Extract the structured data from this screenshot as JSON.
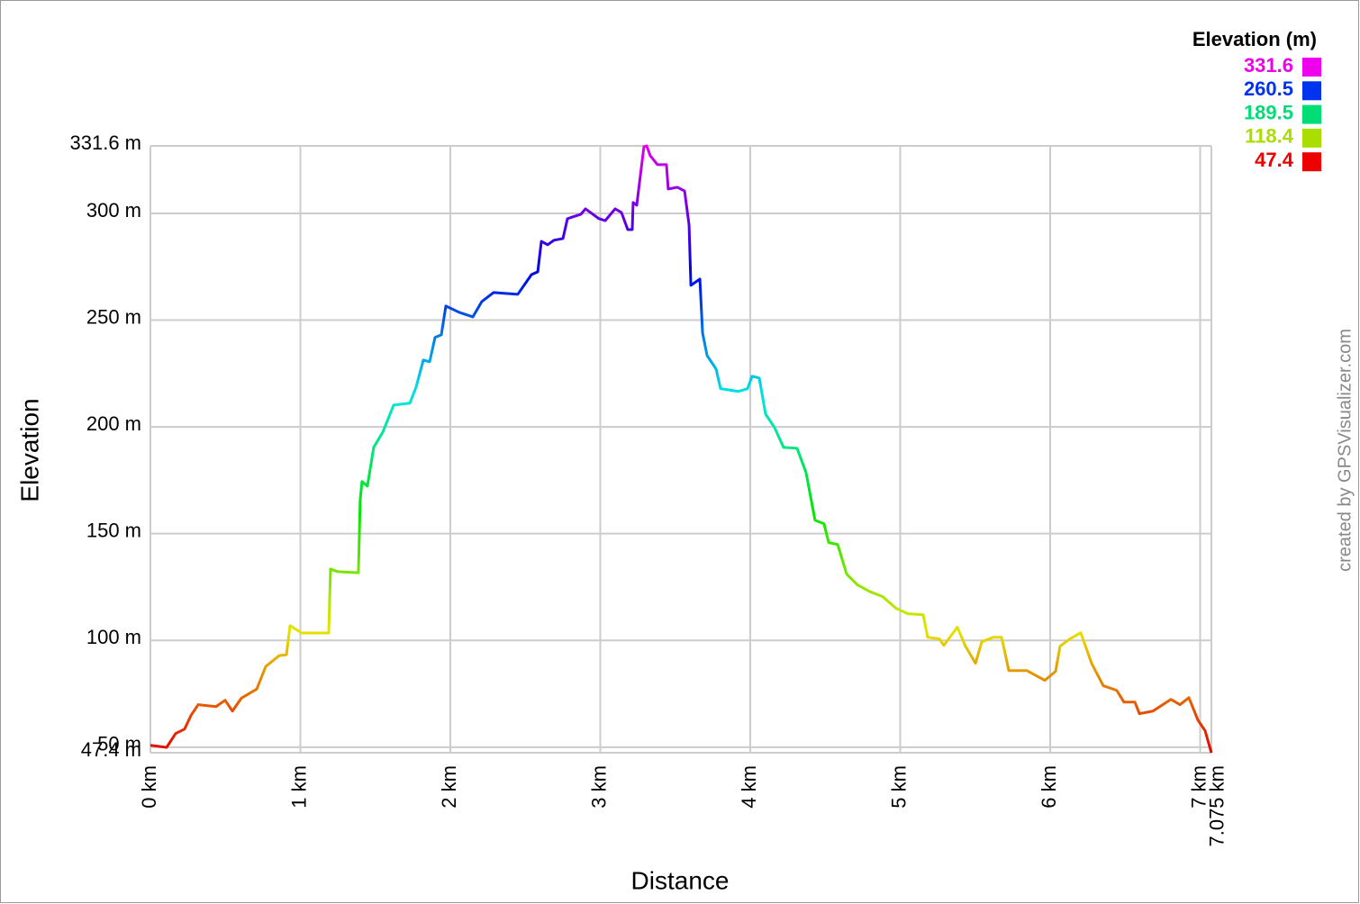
{
  "chart_data": {
    "type": "line",
    "x_label": "Distance",
    "y_label": "Elevation",
    "credit": "created by GPSVisualizer.com",
    "color_scale": {
      "title": "Elevation (m)",
      "stops": [
        {
          "value": 331.6,
          "color": "#ee00ee"
        },
        {
          "value": 260.5,
          "color": "#0033ee"
        },
        {
          "value": 189.5,
          "color": "#00dd77"
        },
        {
          "value": 118.4,
          "color": "#aadd00"
        },
        {
          "value": 47.4,
          "color": "#ee0000"
        }
      ]
    },
    "xlim": [
      0,
      7.075
    ],
    "xticks": [
      {
        "value": 0,
        "label": "0 km"
      },
      {
        "value": 1,
        "label": "1 km"
      },
      {
        "value": 2,
        "label": "2 km"
      },
      {
        "value": 3,
        "label": "3 km"
      },
      {
        "value": 4,
        "label": "4 km"
      },
      {
        "value": 5,
        "label": "5 km"
      },
      {
        "value": 6,
        "label": "6 km"
      },
      {
        "value": 7,
        "label": "7 km"
      },
      {
        "value": 7.075,
        "label": "7.075 km"
      }
    ],
    "ylim": [
      47.4,
      331.6
    ],
    "yticks": [
      {
        "value": 47.4,
        "label": "47.4 m"
      },
      {
        "value": 50,
        "label": "50 m"
      },
      {
        "value": 100,
        "label": "100 m"
      },
      {
        "value": 150,
        "label": "150 m"
      },
      {
        "value": 200,
        "label": "200 m"
      },
      {
        "value": 250,
        "label": "250 m"
      },
      {
        "value": 300,
        "label": "300 m"
      },
      {
        "value": 331.6,
        "label": "331.6 m"
      }
    ],
    "grid": true,
    "x": [
      0,
      0.108,
      0.168,
      0.228,
      0.27,
      0.318,
      0.438,
      0.498,
      0.547,
      0.607,
      0.709,
      0.769,
      0.859,
      0.907,
      0.931,
      1.009,
      1.099,
      1.189,
      1.201,
      1.249,
      1.387,
      1.399,
      1.411,
      1.447,
      1.489,
      1.55,
      1.622,
      1.73,
      1.772,
      1.82,
      1.862,
      1.898,
      1.94,
      1.97,
      2.06,
      2.15,
      2.21,
      2.288,
      2.45,
      2.541,
      2.583,
      2.607,
      2.649,
      2.691,
      2.751,
      2.781,
      2.871,
      2.901,
      2.991,
      3.033,
      3.099,
      3.141,
      3.183,
      3.213,
      3.219,
      3.243,
      3.273,
      3.291,
      3.309,
      3.333,
      3.381,
      3.441,
      3.453,
      3.514,
      3.562,
      3.592,
      3.604,
      3.664,
      3.682,
      3.712,
      3.772,
      3.802,
      3.922,
      3.982,
      4.012,
      4.06,
      4.102,
      4.162,
      4.222,
      4.312,
      4.372,
      4.432,
      4.492,
      4.523,
      4.583,
      4.643,
      4.715,
      4.793,
      4.883,
      4.973,
      5.051,
      5.153,
      5.183,
      5.261,
      5.291,
      5.381,
      5.435,
      5.502,
      5.544,
      5.622,
      5.676,
      5.724,
      5.844,
      5.964,
      6.036,
      6.066,
      6.132,
      6.204,
      6.276,
      6.354,
      6.444,
      6.492,
      6.565,
      6.595,
      6.685,
      6.805,
      6.865,
      6.925,
      6.985,
      7.033,
      7.075
    ],
    "values": [
      50.9,
      49.9,
      56.4,
      58.5,
      64.8,
      69.9,
      69.0,
      72.0,
      66.9,
      73.0,
      77.2,
      87.8,
      92.9,
      93.3,
      106.9,
      103.5,
      103.5,
      103.5,
      133.4,
      132.2,
      131.7,
      165.9,
      174.4,
      172.3,
      190.4,
      197.6,
      210.2,
      211.1,
      218.7,
      231.3,
      230.5,
      241.9,
      243.1,
      256.6,
      253.6,
      251.5,
      258.7,
      262.9,
      262.1,
      271.3,
      272.6,
      286.9,
      285.3,
      287.4,
      288.2,
      297.5,
      299.6,
      302.1,
      297.5,
      296.6,
      302.1,
      300.4,
      292.4,
      292.4,
      305.1,
      303.8,
      321.1,
      331.2,
      331.6,
      327.0,
      322.8,
      322.8,
      311.4,
      312.2,
      310.5,
      294.5,
      266.3,
      269.2,
      244.0,
      233.4,
      227.1,
      217.9,
      216.6,
      217.9,
      223.7,
      222.9,
      206.0,
      199.7,
      190.4,
      190.0,
      178.6,
      156.3,
      154.6,
      145.8,
      144.9,
      131.0,
      126.0,
      123.0,
      120.5,
      115.0,
      112.5,
      112.0,
      101.5,
      100.7,
      97.7,
      106.2,
      97.3,
      89.3,
      99.4,
      101.5,
      101.5,
      85.9,
      85.9,
      81.3,
      85.5,
      97.3,
      100.7,
      103.6,
      89.3,
      78.8,
      76.6,
      71.1,
      71.1,
      65.7,
      66.9,
      72.4,
      69.9,
      73.2,
      62.7,
      57.7,
      47.4
    ]
  }
}
